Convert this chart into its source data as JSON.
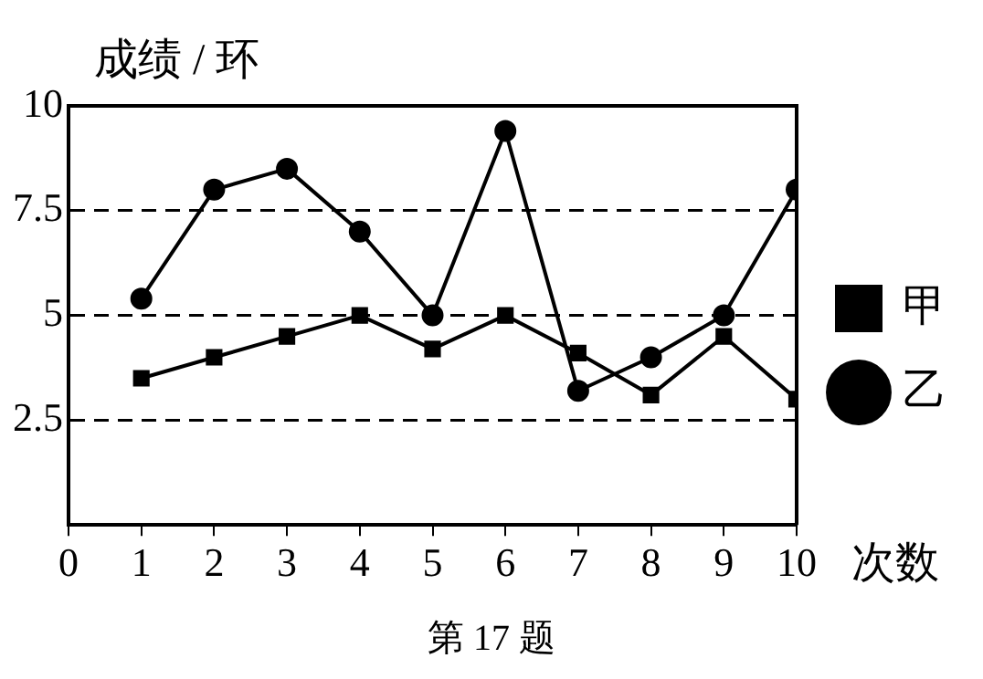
{
  "chart_data": {
    "type": "line",
    "ylabel": "成绩 / 环",
    "xlabel": "次数",
    "annotations": [
      "第 17 题"
    ],
    "x": [
      1,
      2,
      3,
      4,
      5,
      6,
      7,
      8,
      9,
      10
    ],
    "series": [
      {
        "name": "甲",
        "color": "#000000",
        "marker": "square",
        "values": [
          3.5,
          4,
          4.5,
          5,
          4.2,
          5,
          4.1,
          3.1,
          4.5,
          3
        ]
      },
      {
        "name": "乙",
        "color": "#000000",
        "marker": "circle",
        "values": [
          5.4,
          8,
          8.5,
          7,
          5,
          9.4,
          3.2,
          4,
          5,
          8
        ]
      }
    ],
    "xlim": [
      0,
      10
    ],
    "xticks": [
      0,
      1,
      2,
      3,
      4,
      5,
      6,
      7,
      8,
      9,
      10
    ],
    "ylim": [
      0,
      10
    ],
    "yticks": [
      2.5,
      5,
      7.5,
      10
    ],
    "grid": "y",
    "legend": "right",
    "line_style": "solid"
  }
}
